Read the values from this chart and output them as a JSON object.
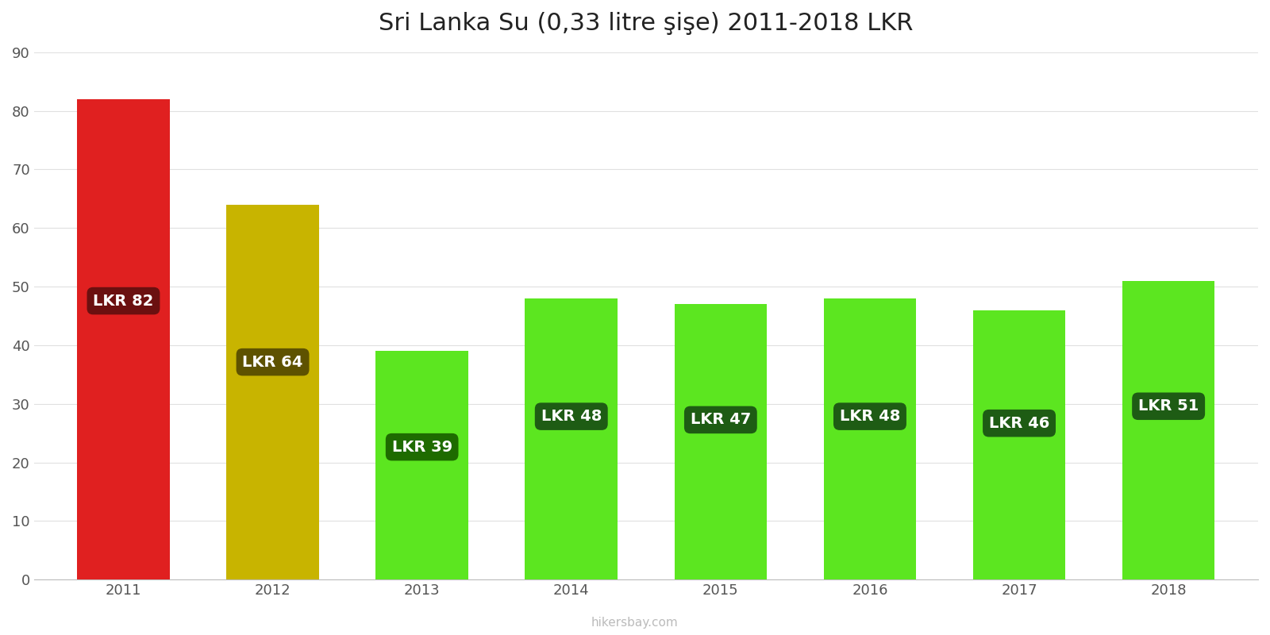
{
  "years": [
    2011,
    2012,
    2013,
    2014,
    2015,
    2016,
    2017,
    2018
  ],
  "values": [
    82,
    64,
    39,
    48,
    47,
    48,
    46,
    51
  ],
  "bar_colors": [
    "#e02020",
    "#c8b400",
    "#5ce620",
    "#5ce620",
    "#5ce620",
    "#5ce620",
    "#5ce620",
    "#5ce620"
  ],
  "label_bg_colors": [
    "#6b1010",
    "#5e5200",
    "#1e6b00",
    "#1e5c14",
    "#1e5c14",
    "#1e5c14",
    "#1e5c14",
    "#1e5c14"
  ],
  "title": "Sri Lanka Su (0,33 litre şişe) 2011-2018 LKR",
  "ylim": [
    0,
    90
  ],
  "yticks": [
    0,
    10,
    20,
    30,
    40,
    50,
    60,
    70,
    80,
    90
  ],
  "watermark": "hikersbay.com",
  "title_fontsize": 22,
  "label_fontsize": 14,
  "tick_fontsize": 13,
  "bar_width": 0.62
}
